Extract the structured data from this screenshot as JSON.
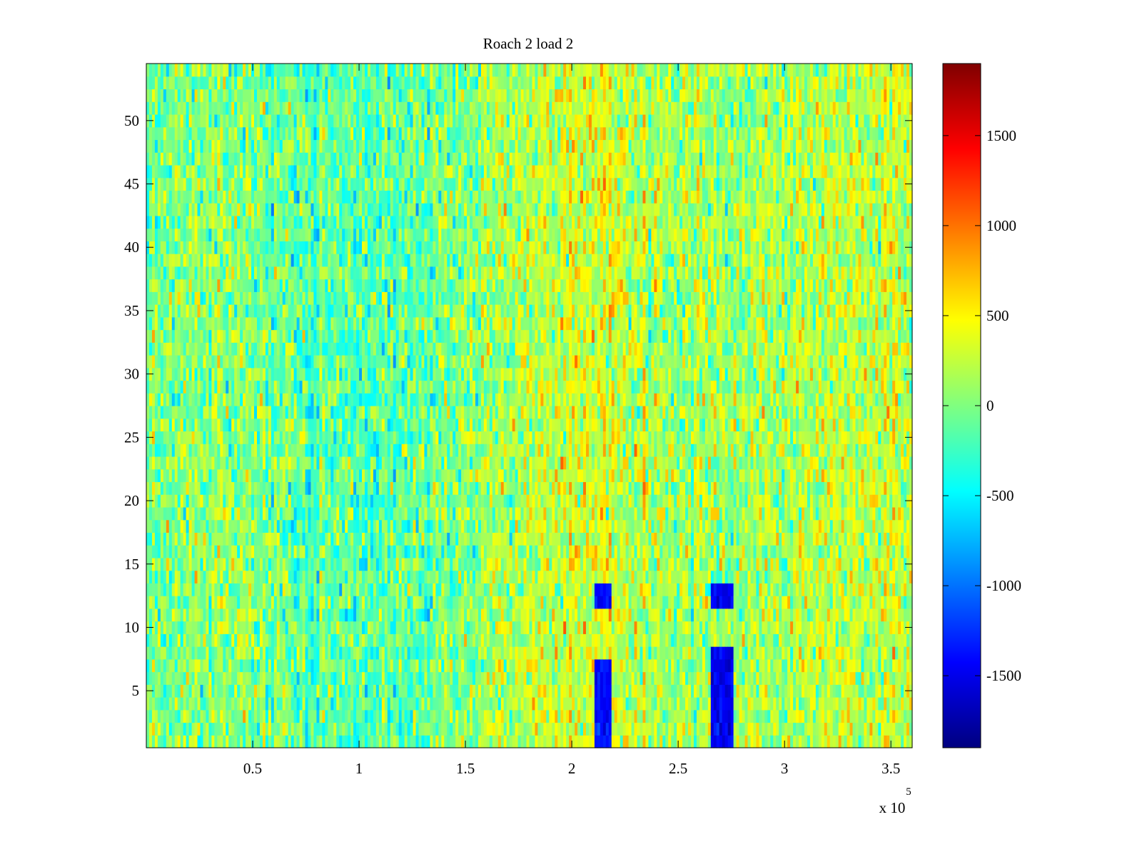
{
  "chart_data": {
    "type": "heatmap",
    "title": "Roach 2 load 2",
    "xlabel": "",
    "ylabel": "",
    "xlim": [
      0,
      360000
    ],
    "ylim": [
      0.5,
      54.5
    ],
    "x_ticks": [
      50000,
      100000,
      150000,
      200000,
      250000,
      300000,
      350000
    ],
    "x_tick_labels": [
      "0.5",
      "1",
      "1.5",
      "2",
      "2.5",
      "3",
      "3.5"
    ],
    "x_exponent_label": "x 10",
    "x_exponent_power": "5",
    "y_ticks": [
      5,
      10,
      15,
      20,
      25,
      30,
      35,
      40,
      45,
      50
    ],
    "y_tick_labels": [
      "5",
      "10",
      "15",
      "20",
      "25",
      "30",
      "35",
      "40",
      "45",
      "50"
    ],
    "rows": 54,
    "colormap": "jet",
    "clim": [
      -1900,
      1900
    ],
    "colorbar": {
      "ticks": [
        -1500,
        -1000,
        -500,
        0,
        500,
        1000,
        1500
      ],
      "tick_labels": [
        "-1500",
        "-1000",
        "-500",
        "0",
        "500",
        "1000",
        "1500"
      ]
    },
    "baseline_profile": [
      {
        "x": 0,
        "value": -20
      },
      {
        "x": 40000,
        "value": 60
      },
      {
        "x": 80000,
        "value": -110
      },
      {
        "x": 110000,
        "value": -180
      },
      {
        "x": 150000,
        "value": 40
      },
      {
        "x": 190000,
        "value": 260
      },
      {
        "x": 215000,
        "value": 380
      },
      {
        "x": 240000,
        "value": 150
      },
      {
        "x": 280000,
        "value": 110
      },
      {
        "x": 320000,
        "value": 210
      },
      {
        "x": 360000,
        "value": 320
      }
    ],
    "noise_amplitude": 380,
    "low_value_regions": [
      {
        "x_range": [
          211000,
          219000
        ],
        "rows": [
          1,
          2,
          3,
          4,
          5,
          6,
          7,
          12,
          13
        ],
        "value": -1400
      },
      {
        "x_range": [
          265000,
          276000
        ],
        "rows": [
          1,
          2,
          3,
          4,
          5,
          6,
          7,
          8,
          12,
          13
        ],
        "value": -1500
      }
    ]
  }
}
